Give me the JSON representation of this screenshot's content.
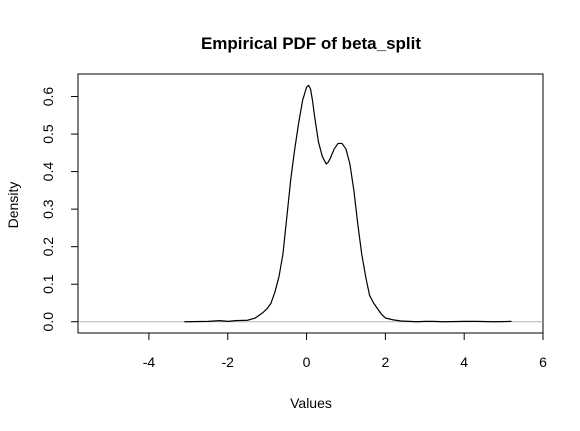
{
  "chart_data": {
    "type": "line",
    "title": "Empirical PDF of beta_split",
    "xlabel": "Values",
    "ylabel": "Density",
    "xlim": [
      -5.8,
      6.0
    ],
    "ylim": [
      -0.03,
      0.66
    ],
    "x_ticks": [
      -4,
      -2,
      0,
      2,
      4,
      6
    ],
    "x_tick_labels": [
      "-4",
      "-2",
      "0",
      "2",
      "4",
      "6"
    ],
    "y_ticks": [
      0.0,
      0.1,
      0.2,
      0.3,
      0.4,
      0.5,
      0.6
    ],
    "y_tick_labels": [
      "0.0",
      "0.1",
      "0.2",
      "0.3",
      "0.4",
      "0.5",
      "0.6"
    ],
    "grid": false,
    "legend": "none",
    "reference_line_y": 0,
    "series": [
      {
        "x": [
          -3.1,
          -2.5,
          -2.2,
          -2.0,
          -1.8,
          -1.5,
          -1.3,
          -1.1,
          -1.0,
          -0.9,
          -0.8,
          -0.7,
          -0.6,
          -0.5,
          -0.4,
          -0.3,
          -0.2,
          -0.1,
          0.0,
          0.05,
          0.1,
          0.15,
          0.2,
          0.3,
          0.4,
          0.5,
          0.55,
          0.6,
          0.7,
          0.8,
          0.9,
          1.0,
          1.1,
          1.2,
          1.3,
          1.4,
          1.5,
          1.6,
          1.7,
          1.8,
          1.9,
          2.0,
          2.2,
          2.4,
          2.6,
          2.8,
          3.0,
          3.2,
          3.5,
          4.0,
          4.3,
          4.8,
          5.2
        ],
        "y": [
          0.0,
          0.001,
          0.003,
          0.001,
          0.003,
          0.004,
          0.01,
          0.025,
          0.035,
          0.05,
          0.08,
          0.12,
          0.18,
          0.28,
          0.38,
          0.46,
          0.53,
          0.59,
          0.625,
          0.63,
          0.62,
          0.59,
          0.55,
          0.48,
          0.44,
          0.42,
          0.425,
          0.435,
          0.46,
          0.475,
          0.475,
          0.46,
          0.42,
          0.35,
          0.26,
          0.18,
          0.12,
          0.07,
          0.05,
          0.035,
          0.02,
          0.01,
          0.005,
          0.002,
          0.001,
          0.0,
          0.001,
          0.001,
          0.0,
          0.001,
          0.001,
          0.0,
          0.001
        ]
      }
    ]
  }
}
